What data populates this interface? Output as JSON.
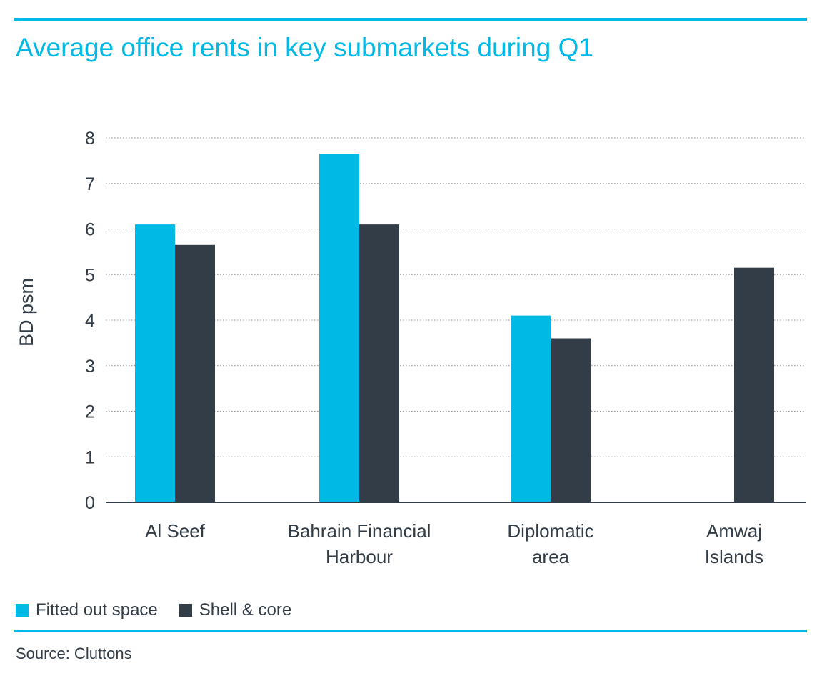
{
  "chart_data": {
    "type": "bar",
    "title": "Average office rents in key submarkets during Q1",
    "ylabel": "BD psm",
    "xlabel": "",
    "ylim": [
      0,
      8
    ],
    "yticks": [
      "0",
      "1",
      "2",
      "3",
      "4",
      "5",
      "6",
      "7",
      "8"
    ],
    "grid": true,
    "legend_position": "bottom-left",
    "categories": [
      [
        "Al Seef"
      ],
      [
        "Bahrain Financial",
        "Harbour"
      ],
      [
        "Diplomatic",
        "area"
      ],
      [
        "Amwaj",
        "Islands"
      ]
    ],
    "series": [
      {
        "name": "Fitted out space",
        "color": "#00b9e4",
        "values": [
          6.1,
          7.65,
          4.1,
          null
        ]
      },
      {
        "name": "Shell & core",
        "color": "#333d47",
        "values": [
          5.65,
          6.1,
          3.6,
          5.15
        ]
      }
    ]
  },
  "source": "Source: Cluttons",
  "colors": {
    "accent": "#00b9e4",
    "text": "#333d47",
    "grid": "#8a8f94"
  }
}
